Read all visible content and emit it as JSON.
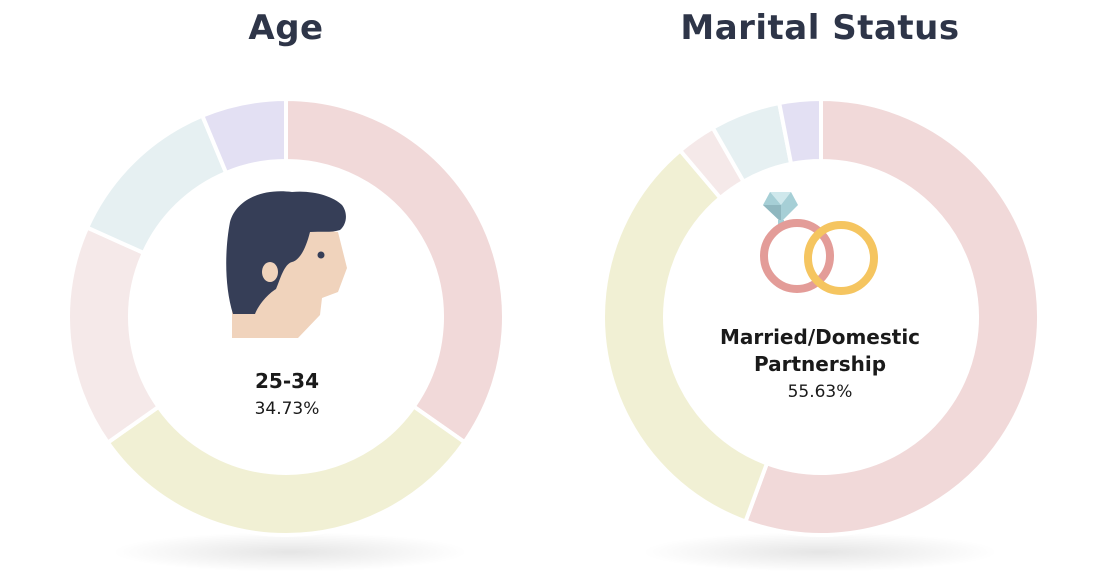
{
  "chart_data": [
    {
      "type": "pie",
      "title": "Age",
      "segments": [
        {
          "value": 34.73,
          "color": "#f1d9d9"
        },
        {
          "value": 30.5,
          "color": "#f1f0d4"
        },
        {
          "value": 16.5,
          "color": "#f5e9e9"
        },
        {
          "value": 12.0,
          "color": "#e6f0f2"
        },
        {
          "value": 6.27,
          "color": "#e3e0f3"
        }
      ],
      "highlight": {
        "label": "25-34",
        "percent": "34.73%"
      },
      "icon": "man-face-icon"
    },
    {
      "type": "pie",
      "title": "Marital Status",
      "segments": [
        {
          "value": 55.63,
          "color": "#f1d9d9"
        },
        {
          "value": 33.2,
          "color": "#f1f0d4"
        },
        {
          "value": 2.9,
          "color": "#f5e9e9"
        },
        {
          "value": 5.2,
          "color": "#e6f0f2"
        },
        {
          "value": 3.07,
          "color": "#e3e0f3"
        }
      ],
      "highlight": {
        "label_line1": "Married/Domestic",
        "label_line2": "Partnership",
        "percent": "55.63%"
      },
      "icon": "wedding-rings-icon"
    }
  ]
}
